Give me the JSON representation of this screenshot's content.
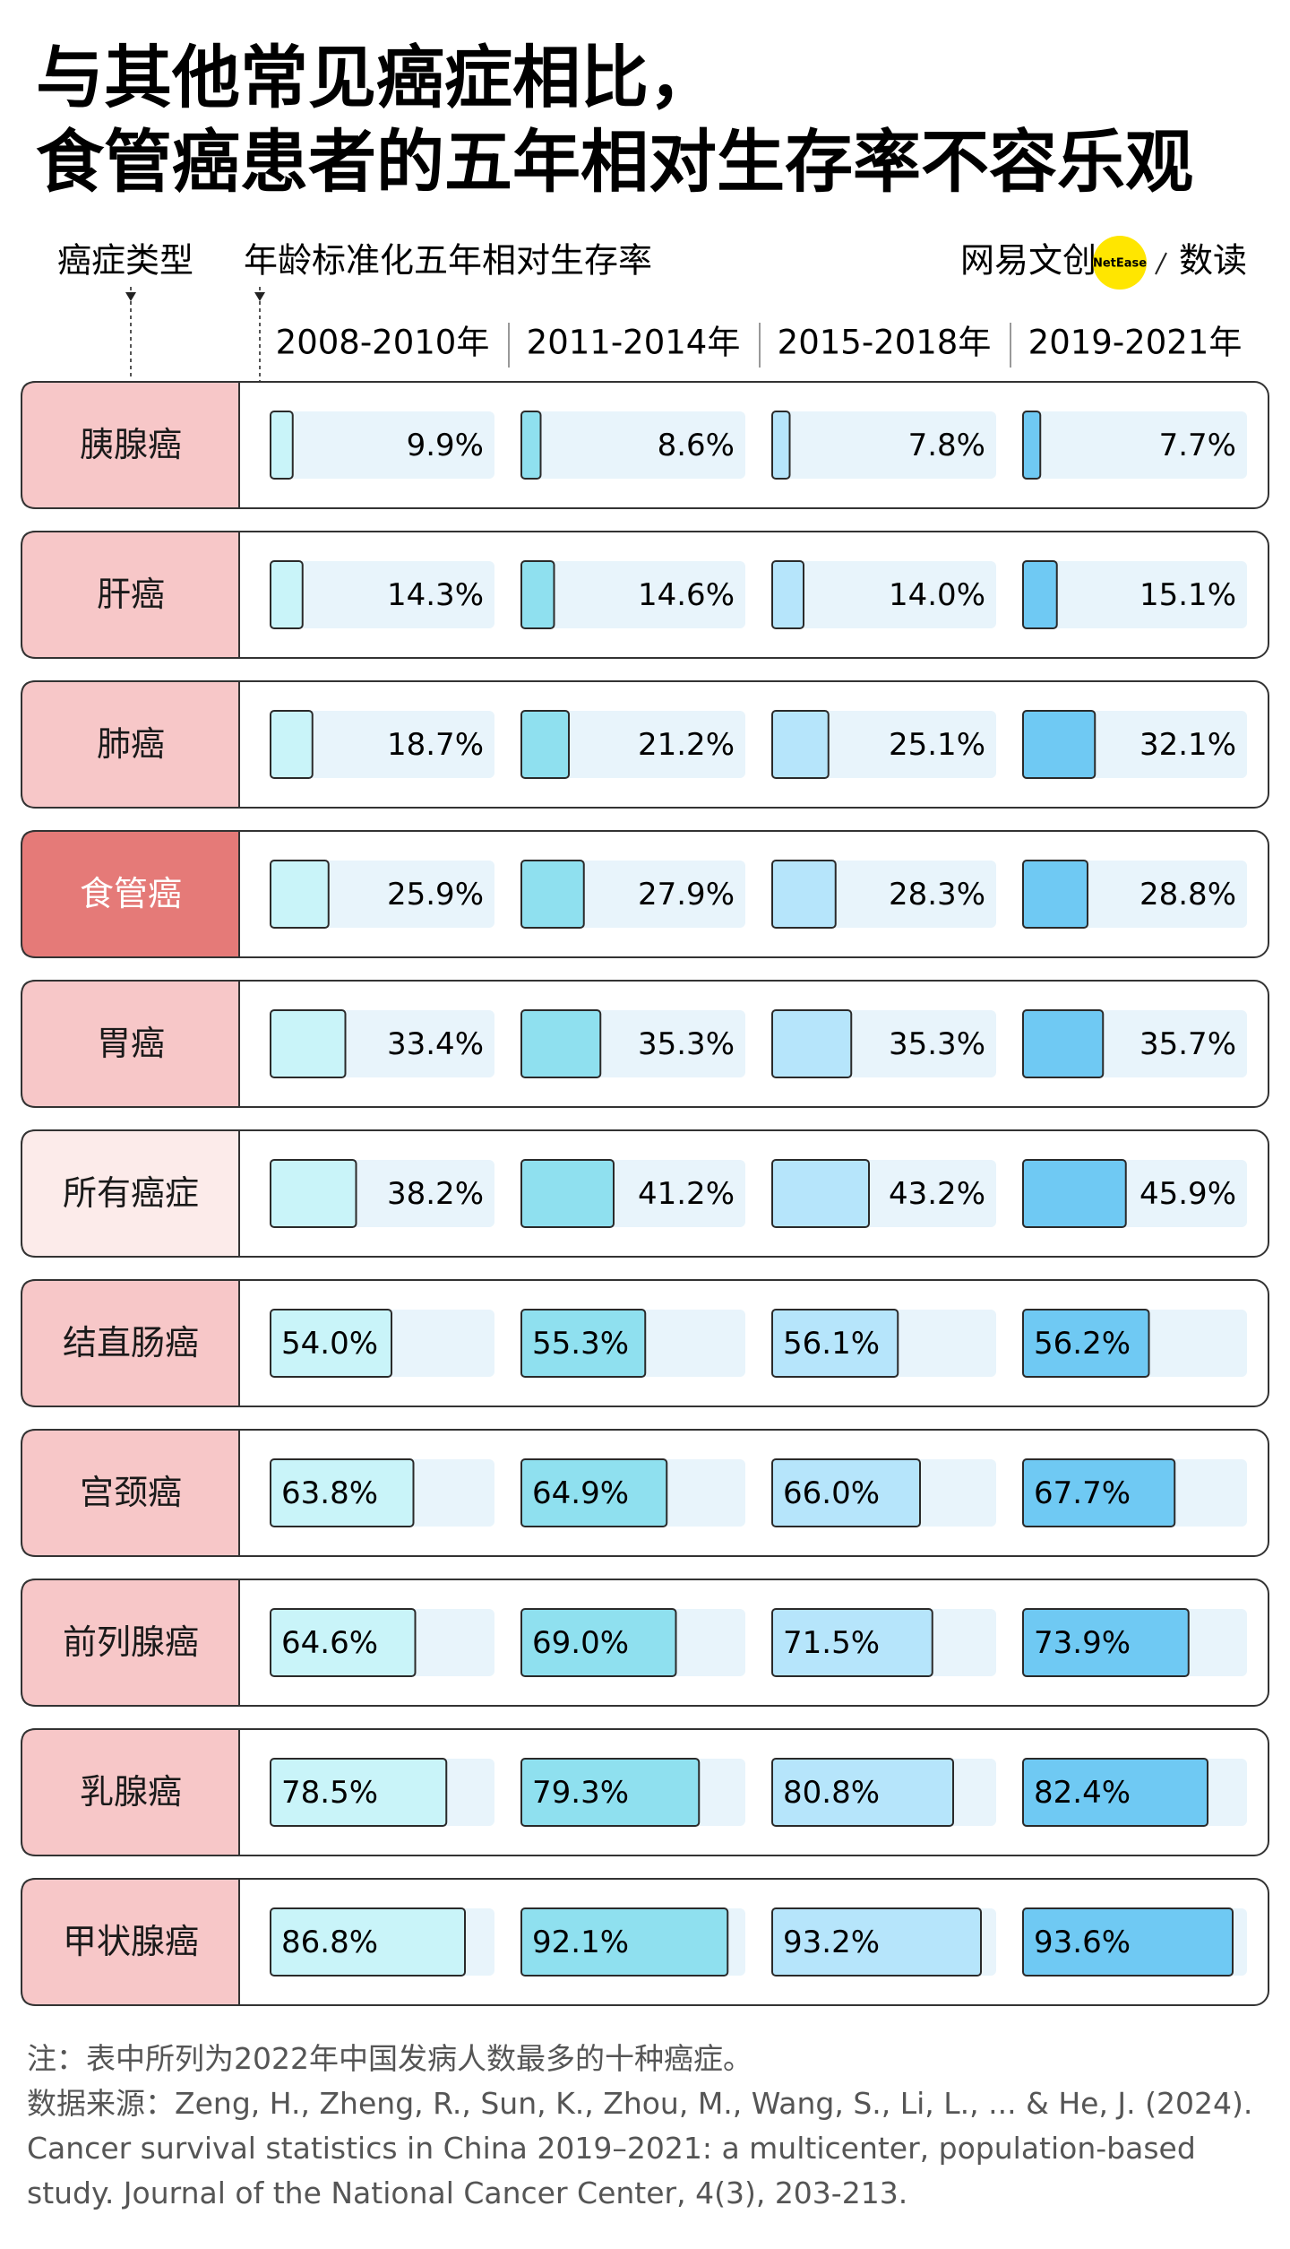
{
  "chart_data": {
    "type": "bar-table",
    "title": [
      "与其他常见癌症相比，",
      "食管癌患者的五年相对生存率不容乐观"
    ],
    "category_header": "癌症类型",
    "value_header": "年龄标准化五年相对生存率",
    "logo": {
      "name": "网易文创",
      "badge": "NetEase",
      "column": "数读"
    },
    "categories": [
      "胰腺癌",
      "肝癌",
      "肺癌",
      "食管癌",
      "胃癌",
      "所有癌症",
      "结直肠癌",
      "宫颈癌",
      "前列腺癌",
      "乳腺癌",
      "甲状腺癌"
    ],
    "category_colors": [
      "#f7c7c8",
      "#f7c7c8",
      "#f7c7c8",
      "#e57a78",
      "#f7c7c8",
      "#fcebea",
      "#f7c7c8",
      "#f7c7c8",
      "#f7c7c8",
      "#f7c7c8",
      "#f7c7c8"
    ],
    "xlim": [
      0,
      100
    ],
    "series": [
      {
        "name": "2008-2010年",
        "color": "#c9f4f9",
        "values": [
          9.9,
          14.3,
          18.7,
          25.9,
          33.4,
          38.2,
          54.0,
          63.8,
          64.6,
          78.5,
          86.8
        ],
        "value_labels": [
          "9.9%",
          "14.3%",
          "18.7%",
          "25.9%",
          "33.4%",
          "38.2%",
          "54.0%",
          "63.8%",
          "64.6%",
          "78.5%",
          "86.8%"
        ]
      },
      {
        "name": "2011-2014年",
        "color": "#8fe0ef",
        "values": [
          8.6,
          14.6,
          21.2,
          27.9,
          35.3,
          41.2,
          55.3,
          64.9,
          69.0,
          79.3,
          92.1
        ],
        "value_labels": [
          "8.6%",
          "14.6%",
          "21.2%",
          "27.9%",
          "35.3%",
          "41.2%",
          "55.3%",
          "64.9%",
          "69.0%",
          "79.3%",
          "92.1%"
        ]
      },
      {
        "name": "2015-2018年",
        "color": "#b6e5fb",
        "values": [
          7.8,
          14.0,
          25.1,
          28.3,
          35.3,
          43.2,
          56.1,
          66.0,
          71.5,
          80.8,
          93.2
        ],
        "value_labels": [
          "7.8%",
          "14.0%",
          "25.1%",
          "28.3%",
          "35.3%",
          "43.2%",
          "56.1%",
          "66.0%",
          "71.5%",
          "80.8%",
          "93.2%"
        ]
      },
      {
        "name": "2019-2021年",
        "color": "#6fc9f3",
        "values": [
          7.7,
          15.1,
          32.1,
          28.8,
          35.7,
          45.9,
          56.2,
          67.7,
          73.9,
          82.4,
          93.6
        ],
        "value_labels": [
          "7.7%",
          "15.1%",
          "32.1%",
          "28.8%",
          "35.7%",
          "45.9%",
          "56.2%",
          "67.7%",
          "73.9%",
          "82.4%",
          "93.6%"
        ]
      }
    ],
    "note": "注：表中所列为2022年中国发病人数最多的十种癌症。",
    "source": "数据来源：Zeng, H., Zheng, R., Sun, K., Zhou, M., Wang, S., Li, L., ... & He, J. (2024). Cancer survival statistics in China 2019–2021: a multicenter, population-based study. Journal of the National Cancer Center, 4(3), 203-213."
  }
}
